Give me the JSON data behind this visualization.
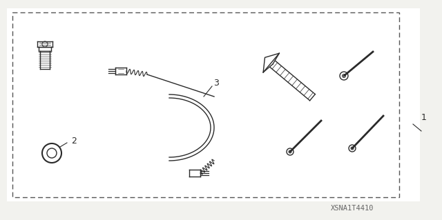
{
  "bg_color": "#f2f2ee",
  "box_color": "#ffffff",
  "line_color": "#2a2a2a",
  "dash_color": "#555555",
  "title_code": "XSNA1T4410",
  "fig_width": 6.4,
  "fig_height": 3.19,
  "dpi": 100
}
